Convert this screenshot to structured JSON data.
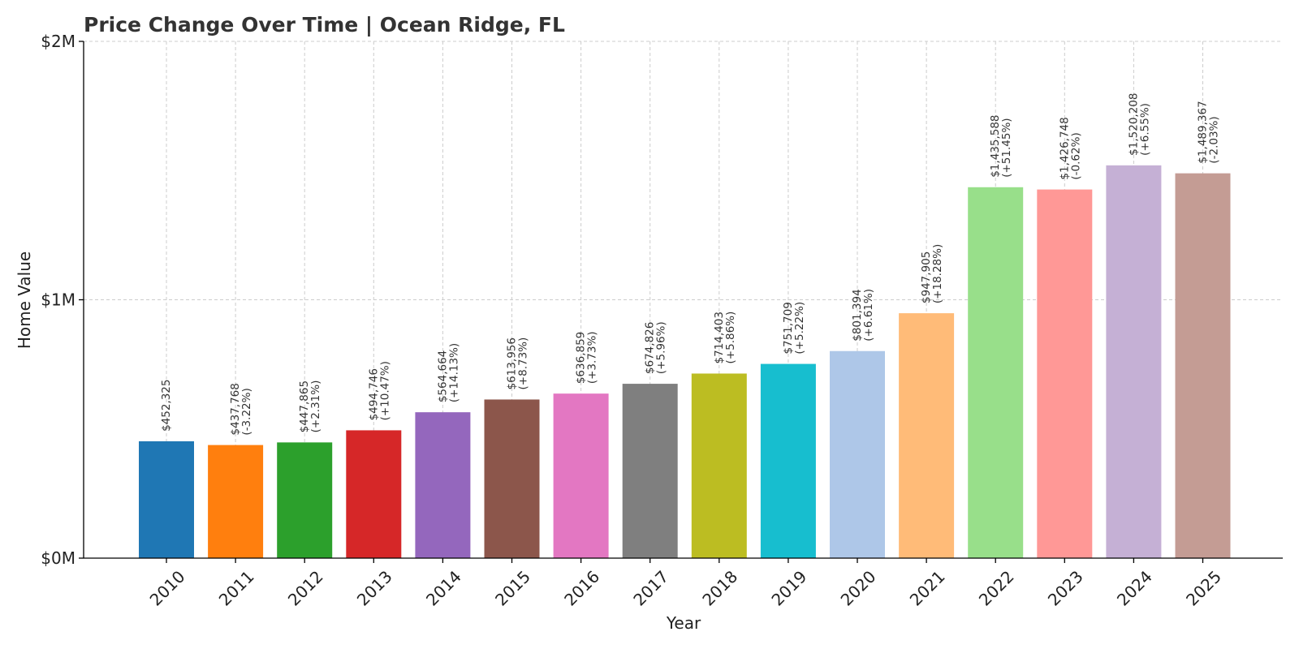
{
  "chart_data": {
    "type": "bar",
    "title": "Price Change Over Time | Ocean Ridge, FL",
    "xlabel": "Year",
    "ylabel": "Home Value",
    "ylim": [
      0,
      2000000
    ],
    "yticks": [
      {
        "value": 0,
        "label": "$0M"
      },
      {
        "value": 1000000,
        "label": "$1M"
      },
      {
        "value": 2000000,
        "label": "$2M"
      }
    ],
    "grid": true,
    "categories": [
      "2010",
      "2011",
      "2012",
      "2013",
      "2014",
      "2015",
      "2016",
      "2017",
      "2018",
      "2019",
      "2020",
      "2021",
      "2022",
      "2023",
      "2024",
      "2025"
    ],
    "values": [
      452325,
      437768,
      447865,
      494746,
      564664,
      613956,
      636859,
      674826,
      714403,
      751709,
      801394,
      947905,
      1435588,
      1426748,
      1520208,
      1489367
    ],
    "value_labels": [
      "$452,325",
      "$437,768",
      "$447,865",
      "$494,746",
      "$564,664",
      "$613,956",
      "$636,859",
      "$674,826",
      "$714,403",
      "$751,709",
      "$801,394",
      "$947,905",
      "$1,435,588",
      "$1,426,748",
      "$1,520,208",
      "$1,489,367"
    ],
    "change_labels": [
      "",
      "(-3.22%)",
      "(+2.31%)",
      "(+10.47%)",
      "(+14.13%)",
      "(+8.73%)",
      "(+3.73%)",
      "(+5.96%)",
      "(+5.86%)",
      "(+5.22%)",
      "(+6.61%)",
      "(+18.28%)",
      "(+51.45%)",
      "(-0.62%)",
      "(+6.55%)",
      "(-2.03%)"
    ],
    "colors": [
      "#1f77b4",
      "#ff7f0e",
      "#2ca02c",
      "#d62728",
      "#9467bd",
      "#8c564b",
      "#e377c2",
      "#7f7f7f",
      "#bcbd22",
      "#17becf",
      "#aec7e8",
      "#ffbb78",
      "#98df8a",
      "#ff9896",
      "#c5b0d5",
      "#c49c94"
    ]
  }
}
